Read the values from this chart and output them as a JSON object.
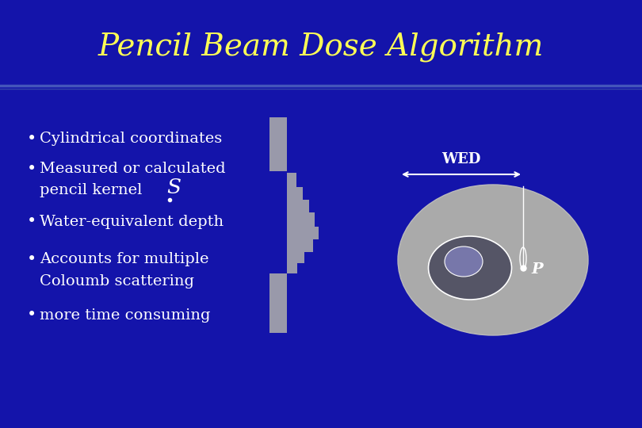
{
  "title": "Pencil Beam Dose Algorithm",
  "title_color": "#FFFF55",
  "title_fontsize": 28,
  "background_color": "#1414AA",
  "header_bg_color": "#1414AA",
  "separator_color": "#5566CC",
  "text_color": "#FFFFFF",
  "bullet_points": [
    "Cylindrical coordinates",
    "Measured or calculated",
    "  pencil kernel",
    "Water-equivalent depth",
    "Accounts for multiple",
    "  Coloumb scattering",
    "more time consuming"
  ],
  "bullet_fontsize": 14,
  "wed_label": "WED",
  "p_label": "P",
  "body_color": "#9999AA",
  "circle_color": "#AAAAAA",
  "inner_dark_color": "#555566",
  "inner_light_color": "#888899"
}
